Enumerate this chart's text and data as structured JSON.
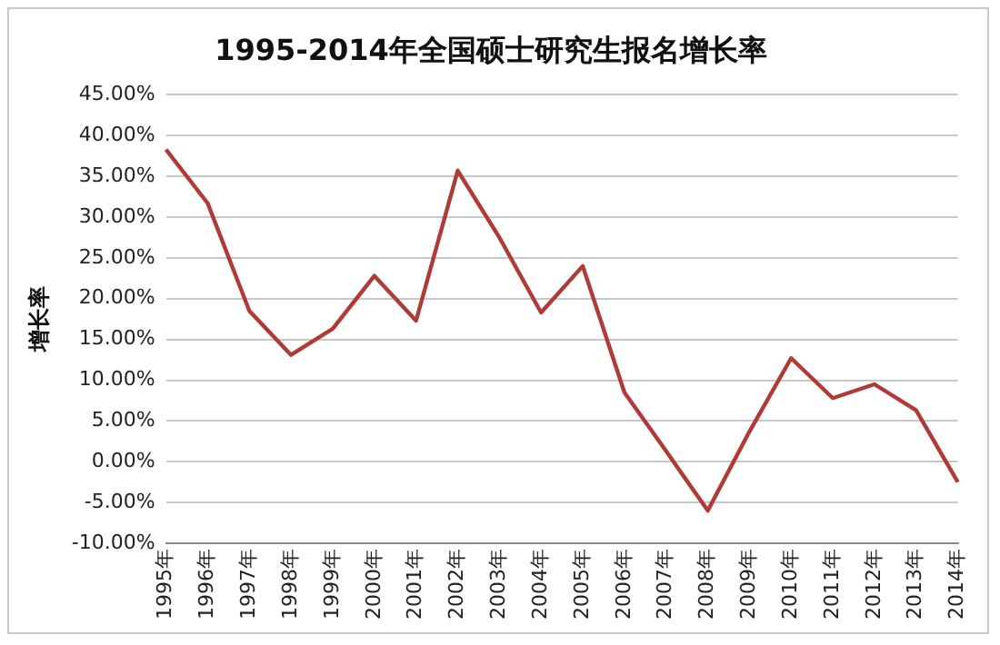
{
  "chart_data": {
    "type": "line",
    "title": "1995-2014年全国硕士研究生报名增长率",
    "ylabel": "增长率",
    "categories": [
      "1995年",
      "1996年",
      "1997年",
      "1998年",
      "1999年",
      "2000年",
      "2001年",
      "2002年",
      "2003年",
      "2004年",
      "2005年",
      "2006年",
      "2007年",
      "2008年",
      "2009年",
      "2010年",
      "2011年",
      "2012年",
      "2013年",
      "2014年"
    ],
    "series": [
      {
        "color": "#b03a36",
        "values": [
          38.3,
          31.7,
          18.5,
          13.1,
          16.3,
          22.8,
          17.3,
          35.7,
          27.5,
          18.3,
          24.0,
          8.5,
          1.3,
          -6.0,
          3.7,
          12.7,
          7.8,
          9.5,
          6.3,
          -2.5
        ]
      }
    ],
    "ylim": [
      -10,
      45
    ],
    "yticks": [
      {
        "value": -10,
        "label": "-10.00%"
      },
      {
        "value": -5,
        "label": "-5.00%"
      },
      {
        "value": 0,
        "label": "0.00%"
      },
      {
        "value": 5,
        "label": "5.00%"
      },
      {
        "value": 10,
        "label": "10.00%"
      },
      {
        "value": 15,
        "label": "15.00%"
      },
      {
        "value": 20,
        "label": "20.00%"
      },
      {
        "value": 25,
        "label": "25.00%"
      },
      {
        "value": 30,
        "label": "30.00%"
      },
      {
        "value": 35,
        "label": "35.00%"
      },
      {
        "value": 40,
        "label": "40.00%"
      },
      {
        "value": 45,
        "label": "45.00%"
      }
    ],
    "grid": "y",
    "legend": false,
    "marker": "none",
    "line_style": "solid"
  }
}
